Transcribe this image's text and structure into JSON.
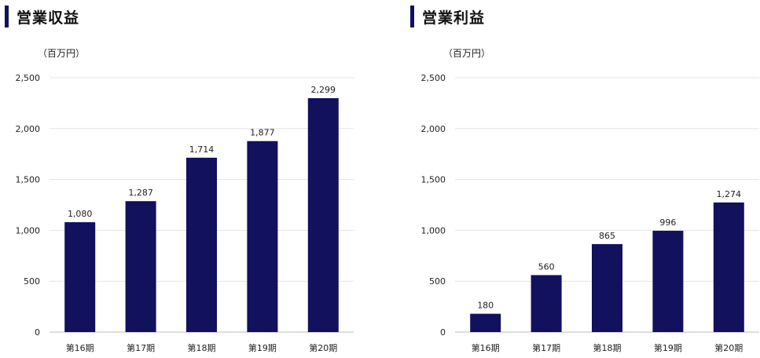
{
  "chart_data": [
    {
      "type": "bar",
      "title": "営業収益",
      "unit_label": "（百万円）",
      "categories": [
        "第16期",
        "第17期",
        "第18期",
        "第19期",
        "第20期"
      ],
      "values": [
        1080,
        1287,
        1714,
        1877,
        2299
      ],
      "value_labels": [
        "1,080",
        "1,287",
        "1,714",
        "1,877",
        "2,299"
      ],
      "y_ticks": [
        0,
        500,
        1000,
        1500,
        2000,
        2500
      ],
      "y_tick_labels": [
        "0",
        "500",
        "1,000",
        "1,500",
        "2,000",
        "2,500"
      ],
      "ylim": [
        0,
        2500
      ],
      "grid": true,
      "legend": "none",
      "bar_color": "#12115e"
    },
    {
      "type": "bar",
      "title": "営業利益",
      "unit_label": "（百万円）",
      "categories": [
        "第16期",
        "第17期",
        "第18期",
        "第19期",
        "第20期"
      ],
      "values": [
        180,
        560,
        865,
        996,
        1274
      ],
      "value_labels": [
        "180",
        "560",
        "865",
        "996",
        "1,274"
      ],
      "y_ticks": [
        0,
        500,
        1000,
        1500,
        2000,
        2500
      ],
      "y_tick_labels": [
        "0",
        "500",
        "1,000",
        "1,500",
        "2,000",
        "2,500"
      ],
      "ylim": [
        0,
        2500
      ],
      "grid": true,
      "legend": "none",
      "bar_color": "#12115e"
    }
  ]
}
